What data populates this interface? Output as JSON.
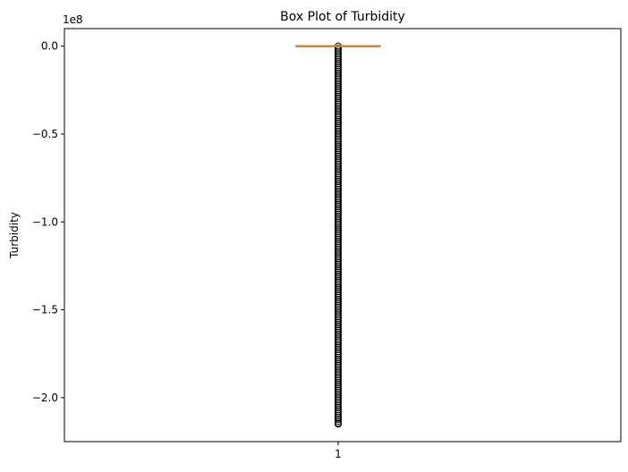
{
  "chart_data": {
    "type": "box",
    "title": "Box Plot of Turbidity",
    "xlabel": "",
    "ylabel": "Turbidity",
    "offset_label": "1e8",
    "categories": [
      "1"
    ],
    "ylim": [
      -225000000.0,
      10000000.0
    ],
    "yticks": [
      0.0,
      -50000000.0,
      -100000000.0,
      -150000000.0,
      -200000000.0
    ],
    "ytick_labels": [
      "0.0",
      "−0.5",
      "−1.0",
      "−1.5",
      "−2.0"
    ],
    "box": {
      "q1": -100000.0,
      "median": 0,
      "q3": 100000.0,
      "whisker_low": -200000.0,
      "whisker_high": 200000.0
    },
    "outliers_range": [
      -215000000.0,
      0
    ],
    "outlier_step": 1100000.0,
    "colors": {
      "box": "#1f77b4",
      "median": "#ff7f0e",
      "outlier_edge": "#000000"
    }
  }
}
